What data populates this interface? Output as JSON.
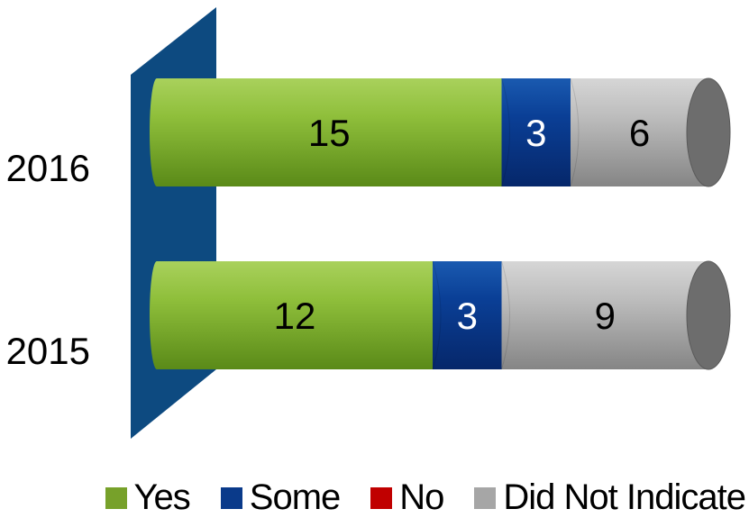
{
  "chart_data": {
    "type": "bar",
    "orientation": "horizontal",
    "stacked": true,
    "categories": [
      "2016",
      "2015"
    ],
    "series": [
      {
        "name": "Yes",
        "values": [
          15,
          12
        ],
        "color": "#77a12a"
      },
      {
        "name": "Some",
        "values": [
          3,
          3
        ],
        "color": "#0a3a8a"
      },
      {
        "name": "No",
        "values": [
          0,
          0
        ],
        "color": "#c00000"
      },
      {
        "name": "Did Not Indicate",
        "values": [
          6,
          9
        ],
        "color": "#a6a6a6"
      }
    ],
    "legend_position": "bottom",
    "grid": false,
    "wall_color": "#0d4a80"
  }
}
